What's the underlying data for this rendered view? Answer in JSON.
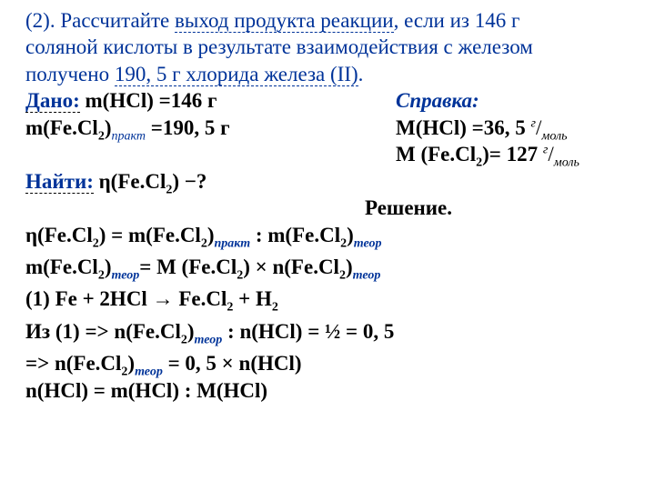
{
  "problem": {
    "num": "(2).",
    "line1a": "Рассчитайте ",
    "line1b": "выход продукта реакции",
    "line1c": ",  если из 146 г",
    "line2": "соляной кислоты в результате взаимодействия с железом",
    "line3a": "получено  ",
    "line3b": "190, 5 г хлорида железа (II)",
    "line3c": "."
  },
  "given": {
    "title": "Дано:",
    "l1": " m(HCl) =146 г",
    "l2a": "m(Fe.Cl",
    "l2b": ")",
    "l2c": " =190, 5 г"
  },
  "reference": {
    "title": "Справка:",
    "l1a": "M(HCl) =36, 5 ",
    "l1b": "г",
    "l1c": "/",
    "l1d": "моль",
    "l2a": "M (Fe.Cl",
    "l2b": ")= 127 ",
    "l2c": "г",
    "l2d": "/",
    "l2e": "моль"
  },
  "find": {
    "title": "Найти:",
    "text": " η(Fe.Cl",
    "text2": ") −?"
  },
  "solution": {
    "title": "Решение.",
    "eq1a": "η(Fe.Cl",
    "eq1b": ") = m(Fe.Cl",
    "eq1c": ")",
    "eq1d": " : m(Fe.Cl",
    "eq1e": ")",
    "eq2a": "m(Fe.Cl",
    "eq2b": ")",
    "eq2c": "= М (Fe.Cl",
    "eq2d": ") × n(Fe.Cl",
    "eq2e": ")",
    "eq3": "(1) Fe + 2HCl  → Fe.Cl",
    "eq3b": " + H",
    "eq4a": "Из (1) =>  n(Fe.Cl",
    "eq4b": ")",
    "eq4c": " : n(HCl) = ½ = 0, 5",
    "eq5a": "=> n(Fe.Cl",
    "eq5b": ")",
    "eq5c": " =  0, 5 × n(HCl)",
    "eq6": "n(HCl) = m(HCl) : M(HCl)"
  },
  "sub2": "2",
  "prakt": "практ",
  "teor": "теор"
}
